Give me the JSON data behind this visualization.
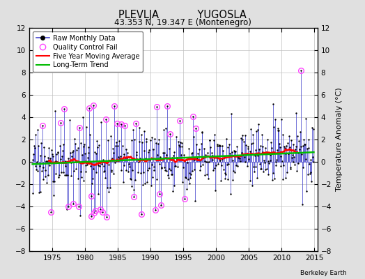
{
  "title": "PLEVLJA            YUGOSLA",
  "subtitle": "43.353 N, 19.347 E (Montenegro)",
  "ylabel": "Temperature Anomaly (°C)",
  "ylim": [
    -8,
    12
  ],
  "xlim": [
    1971.5,
    2015.5
  ],
  "yticks": [
    -8,
    -6,
    -4,
    -2,
    0,
    2,
    4,
    6,
    8,
    10,
    12
  ],
  "xticks": [
    1975,
    1980,
    1985,
    1990,
    1995,
    2000,
    2005,
    2010,
    2015
  ],
  "background_color": "#e0e0e0",
  "plot_background": "#ffffff",
  "grid_color": "#c0c0c0",
  "stem_color": "#4444cc",
  "marker_color": "#000000",
  "qc_color": "#ff44ff",
  "moving_avg_color": "#ff0000",
  "trend_color": "#00bb00",
  "attribution": "Berkeley Earth",
  "seed": 17
}
